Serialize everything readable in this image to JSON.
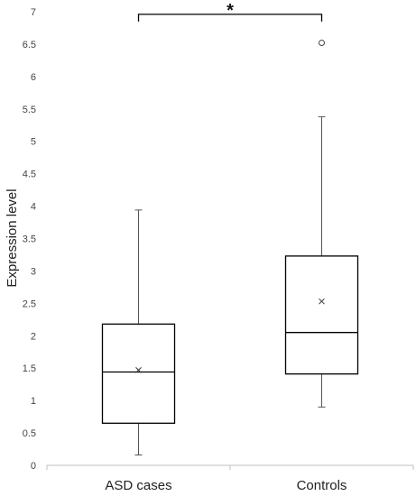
{
  "chart_data": {
    "type": "box",
    "title": "",
    "xlabel": "",
    "ylabel": "Expression level",
    "ylim": [
      0,
      7
    ],
    "ytick_step": 0.5,
    "grid": false,
    "yticks": [
      "0",
      "0.5",
      "1",
      "1.5",
      "2",
      "2.5",
      "3",
      "3.5",
      "4",
      "4.5",
      "5",
      "5.5",
      "6",
      "6.5",
      "7"
    ],
    "categories": [
      "ASD cases",
      "Controls"
    ],
    "boxes": [
      {
        "category": "ASD cases",
        "whisker_low": 0.16,
        "q1": 0.65,
        "median": 1.44,
        "q3": 2.18,
        "whisker_high": 3.94,
        "mean": 1.47,
        "outliers": []
      },
      {
        "category": "Controls",
        "whisker_low": 0.9,
        "q1": 1.41,
        "median": 2.05,
        "q3": 3.23,
        "whisker_high": 5.38,
        "mean": 2.53,
        "outliers": [
          6.52
        ]
      }
    ],
    "annotation": {
      "text": "*",
      "between": [
        "ASD cases",
        "Controls"
      ],
      "y": 6.96
    },
    "colors": {
      "box": "#000000",
      "axis": "#bfbfbf",
      "whisker": "#555555"
    }
  }
}
